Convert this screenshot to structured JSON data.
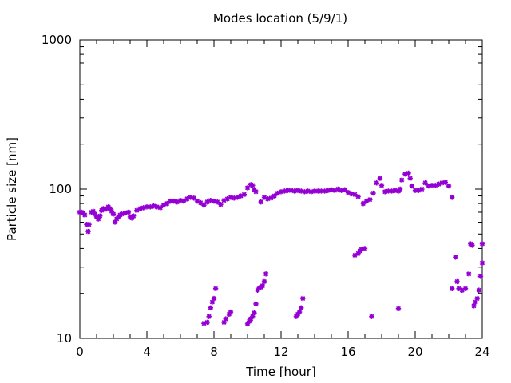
{
  "chart_data": {
    "type": "scatter",
    "title": "Modes location (5/9/1)",
    "xlabel": "Time [hour]",
    "ylabel": "Particle size [nm]",
    "xlim": [
      0,
      24
    ],
    "ylim": [
      10,
      1000
    ],
    "yscale": "log",
    "grid": false,
    "legend": "none",
    "marker_color": "#9400d3",
    "marker": "asterisk",
    "x_ticks": [
      0,
      4,
      8,
      12,
      16,
      20,
      24
    ],
    "x_tick_labels": [
      "0",
      "4",
      "8",
      "12",
      "16",
      "20",
      "24"
    ],
    "y_ticks": [
      10,
      100,
      1000
    ],
    "y_tick_labels": [
      "10",
      "100",
      "1000"
    ],
    "series": [
      {
        "points": [
          [
            0.0,
            70
          ],
          [
            0.1,
            70
          ],
          [
            0.2,
            69
          ],
          [
            0.3,
            67
          ],
          [
            0.4,
            58
          ],
          [
            0.5,
            52
          ],
          [
            0.55,
            58
          ],
          [
            0.7,
            70
          ],
          [
            0.8,
            71
          ],
          [
            0.9,
            68
          ],
          [
            1.0,
            65
          ],
          [
            1.1,
            63
          ],
          [
            1.2,
            66
          ],
          [
            1.3,
            72
          ],
          [
            1.4,
            74
          ],
          [
            1.5,
            73
          ],
          [
            1.6,
            74
          ],
          [
            1.7,
            76
          ],
          [
            1.8,
            74
          ],
          [
            1.9,
            71
          ],
          [
            2.0,
            68
          ],
          [
            2.1,
            60
          ],
          [
            2.2,
            63
          ],
          [
            2.3,
            65
          ],
          [
            2.4,
            67
          ],
          [
            2.5,
            68
          ],
          [
            2.7,
            69
          ],
          [
            2.9,
            70
          ],
          [
            3.0,
            65
          ],
          [
            3.1,
            64
          ],
          [
            3.2,
            66
          ],
          [
            3.4,
            72
          ],
          [
            3.6,
            74
          ],
          [
            3.8,
            75
          ],
          [
            4.0,
            76
          ],
          [
            4.2,
            76
          ],
          [
            4.4,
            77
          ],
          [
            4.6,
            76
          ],
          [
            4.8,
            75
          ],
          [
            5.0,
            78
          ],
          [
            5.2,
            80
          ],
          [
            5.4,
            83
          ],
          [
            5.6,
            83
          ],
          [
            5.8,
            82
          ],
          [
            6.0,
            84
          ],
          [
            6.2,
            83
          ],
          [
            6.4,
            86
          ],
          [
            6.6,
            88
          ],
          [
            6.8,
            87
          ],
          [
            7.0,
            83
          ],
          [
            7.2,
            81
          ],
          [
            7.4,
            78
          ],
          [
            7.6,
            82
          ],
          [
            7.8,
            84
          ],
          [
            8.0,
            83
          ],
          [
            8.2,
            82
          ],
          [
            8.4,
            79
          ],
          [
            8.6,
            84
          ],
          [
            8.8,
            86
          ],
          [
            9.0,
            88
          ],
          [
            9.2,
            87
          ],
          [
            9.4,
            88
          ],
          [
            9.6,
            90
          ],
          [
            9.8,
            92
          ],
          [
            10.0,
            102
          ],
          [
            10.2,
            107
          ],
          [
            10.3,
            106
          ],
          [
            10.4,
            99
          ],
          [
            10.5,
            96
          ],
          [
            10.8,
            82
          ],
          [
            11.0,
            88
          ],
          [
            11.2,
            86
          ],
          [
            11.4,
            87
          ],
          [
            11.6,
            90
          ],
          [
            11.8,
            94
          ],
          [
            12.0,
            96
          ],
          [
            12.2,
            97
          ],
          [
            12.4,
            98
          ],
          [
            12.6,
            98
          ],
          [
            12.8,
            97
          ],
          [
            13.0,
            98
          ],
          [
            13.2,
            97
          ],
          [
            13.4,
            96
          ],
          [
            13.6,
            97
          ],
          [
            13.8,
            96
          ],
          [
            14.0,
            97
          ],
          [
            14.2,
            97
          ],
          [
            14.4,
            97
          ],
          [
            14.6,
            97
          ],
          [
            14.8,
            98
          ],
          [
            15.0,
            99
          ],
          [
            15.2,
            98
          ],
          [
            15.4,
            100
          ],
          [
            15.6,
            98
          ],
          [
            15.8,
            99
          ],
          [
            16.0,
            95
          ],
          [
            16.2,
            93
          ],
          [
            16.4,
            92
          ],
          [
            16.6,
            89
          ],
          [
            16.9,
            80
          ],
          [
            17.1,
            83
          ],
          [
            17.3,
            85
          ],
          [
            17.5,
            94
          ],
          [
            17.7,
            110
          ],
          [
            17.9,
            118
          ],
          [
            18.0,
            106
          ],
          [
            18.2,
            96
          ],
          [
            18.4,
            97
          ],
          [
            18.6,
            97
          ],
          [
            18.8,
            98
          ],
          [
            19.0,
            97
          ],
          [
            19.1,
            100
          ],
          [
            19.2,
            115
          ],
          [
            19.4,
            126
          ],
          [
            19.6,
            128
          ],
          [
            19.7,
            118
          ],
          [
            19.8,
            105
          ],
          [
            20.0,
            98
          ],
          [
            20.2,
            98
          ],
          [
            20.4,
            100
          ],
          [
            20.6,
            110
          ],
          [
            20.8,
            105
          ],
          [
            21.0,
            106
          ],
          [
            21.2,
            106
          ],
          [
            21.4,
            108
          ],
          [
            21.6,
            110
          ],
          [
            21.8,
            111
          ],
          [
            22.0,
            105
          ],
          [
            22.2,
            88
          ],
          [
            7.4,
            12.6
          ],
          [
            7.6,
            12.8
          ],
          [
            7.7,
            14
          ],
          [
            7.8,
            16
          ],
          [
            7.9,
            17.5
          ],
          [
            8.0,
            18.5
          ],
          [
            8.1,
            21.5
          ],
          [
            8.6,
            12.8
          ],
          [
            8.7,
            13.5
          ],
          [
            8.9,
            14.5
          ],
          [
            9.0,
            15
          ],
          [
            10.0,
            12.5
          ],
          [
            10.1,
            13
          ],
          [
            10.2,
            13.5
          ],
          [
            10.3,
            14
          ],
          [
            10.4,
            14.8
          ],
          [
            10.5,
            17
          ],
          [
            10.6,
            21
          ],
          [
            10.7,
            21.8
          ],
          [
            10.8,
            22
          ],
          [
            10.9,
            22.5
          ],
          [
            11.0,
            24
          ],
          [
            11.1,
            27
          ],
          [
            12.9,
            14
          ],
          [
            13.0,
            14.5
          ],
          [
            13.1,
            15
          ],
          [
            13.2,
            16
          ],
          [
            13.3,
            18.5
          ],
          [
            16.4,
            36
          ],
          [
            16.6,
            37
          ],
          [
            16.7,
            38.5
          ],
          [
            16.8,
            39.5
          ],
          [
            17.0,
            40
          ],
          [
            17.4,
            14
          ],
          [
            19.0,
            15.8
          ],
          [
            22.2,
            21.5
          ],
          [
            22.4,
            35
          ],
          [
            22.5,
            24
          ],
          [
            22.6,
            21.5
          ],
          [
            22.8,
            21
          ],
          [
            23.0,
            21.5
          ],
          [
            23.2,
            27
          ],
          [
            23.3,
            43
          ],
          [
            23.4,
            42
          ],
          [
            23.5,
            16.5
          ],
          [
            23.6,
            17.5
          ],
          [
            23.7,
            18.5
          ],
          [
            23.8,
            21
          ],
          [
            23.9,
            26
          ],
          [
            24.0,
            32
          ],
          [
            24.0,
            43
          ]
        ]
      }
    ]
  }
}
